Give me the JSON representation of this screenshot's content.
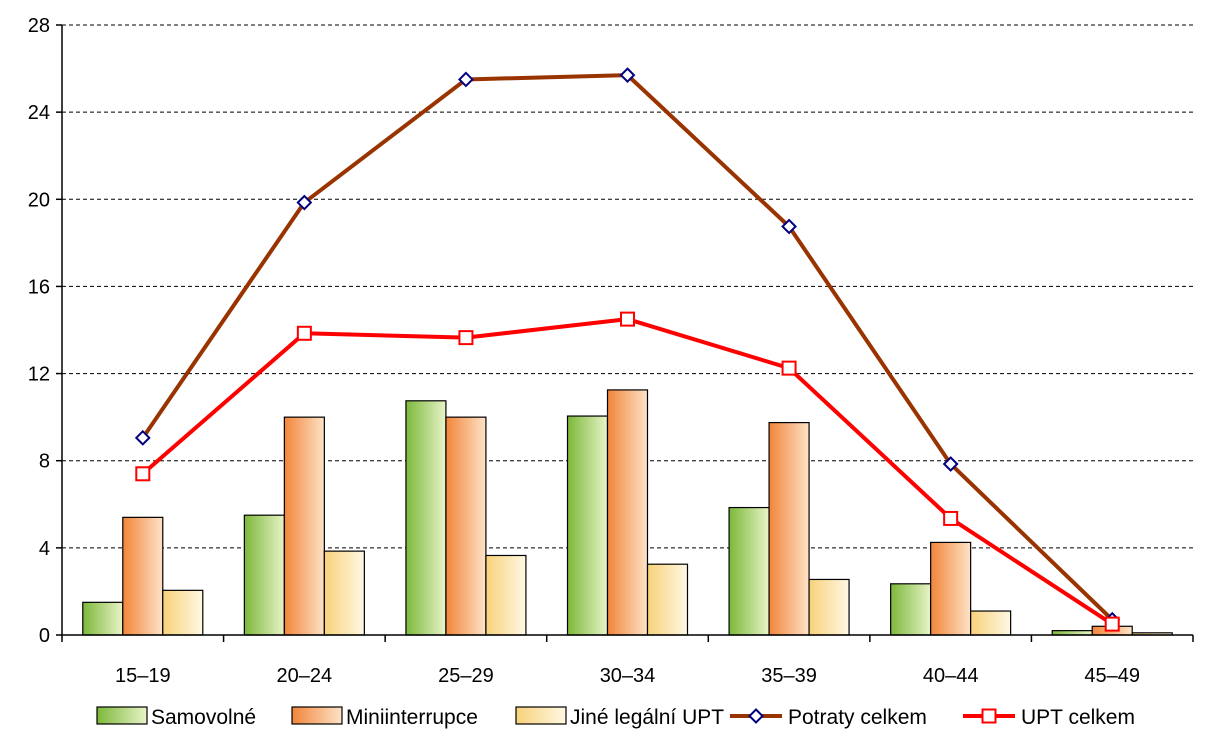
{
  "chart_data": {
    "type": "bar",
    "categories": [
      "15–19",
      "20–24",
      "25–29",
      "30–34",
      "35–39",
      "40–44",
      "45–49"
    ],
    "series": [
      {
        "name": "Samovolné",
        "kind": "bar",
        "values": [
          1.5,
          5.5,
          10.75,
          10.05,
          5.85,
          2.35,
          0.2
        ]
      },
      {
        "name": "Miniinterrupce",
        "kind": "bar",
        "values": [
          5.4,
          10.0,
          10.0,
          11.25,
          9.75,
          4.25,
          0.4
        ]
      },
      {
        "name": "Jiné legální UPT",
        "kind": "bar",
        "values": [
          2.05,
          3.85,
          3.65,
          3.25,
          2.55,
          1.1,
          0.1
        ]
      },
      {
        "name": "Potraty celkem",
        "kind": "line",
        "marker": "diamond",
        "values": [
          9.05,
          19.85,
          25.5,
          25.7,
          18.75,
          7.85,
          0.7
        ]
      },
      {
        "name": "UPT celkem",
        "kind": "line",
        "marker": "square",
        "values": [
          7.4,
          13.85,
          13.65,
          14.5,
          12.25,
          5.35,
          0.5
        ]
      }
    ],
    "ylim": [
      0,
      28
    ],
    "yticks": [
      0,
      4,
      8,
      12,
      16,
      20,
      24,
      28
    ],
    "grid": "horizontal dashed",
    "legend": "bottom",
    "colors": {
      "samovolne": "#92c851",
      "miniinterrupce": "#f7a562",
      "jine": "#fbdf95",
      "potraty_line": "#993300",
      "potraty_marker": "#000080",
      "upt_line": "#ff0000"
    }
  }
}
